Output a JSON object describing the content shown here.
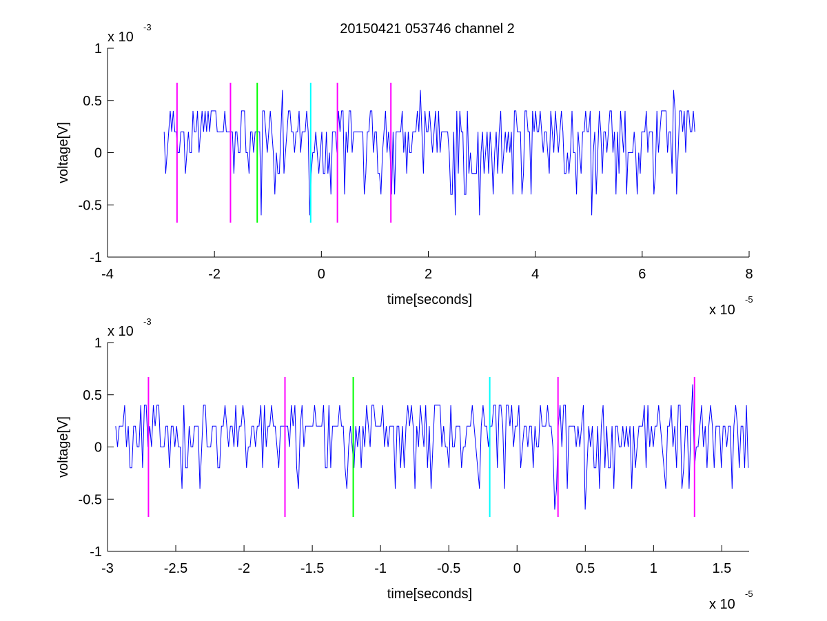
{
  "figure": {
    "title": "20150421 053746 channel 2"
  },
  "chart_data": [
    {
      "type": "line",
      "title": "20150421 053746 channel 2",
      "xlabel": "time[seconds]",
      "ylabel": "voltage[V]",
      "x_exponent_label": "x 10",
      "x_exponent": "-5",
      "y_exponent_label": "x 10",
      "y_exponent": "-3",
      "xlim": [
        -4e-05,
        8e-05
      ],
      "ylim": [
        -0.001,
        0.001
      ],
      "xticks": [
        -4e-05,
        -2e-05,
        0,
        2e-05,
        4e-05,
        6e-05,
        8e-05
      ],
      "xtick_labels": [
        "-4",
        "-2",
        "0",
        "2",
        "4",
        "6",
        "8"
      ],
      "yticks": [
        -0.001,
        -0.0005,
        0,
        0.0005,
        0.001
      ],
      "ytick_labels": [
        "-1",
        "-0.5",
        "0",
        "0.5",
        "1"
      ],
      "signal": {
        "x_start": -2.94e-05,
        "x_end": 7e-05,
        "color": "#0000ff",
        "levels": [
          -0.0006,
          -0.0004,
          -0.0002,
          0,
          0.0002,
          0.0004,
          0.0006
        ],
        "baseline": 0.0002
      },
      "markers": [
        {
          "x": -2.7e-05,
          "color": "#ff00ff",
          "ymin": -0.00067,
          "ymax": 0.00067
        },
        {
          "x": -1.7e-05,
          "color": "#ff00ff",
          "ymin": -0.00067,
          "ymax": 0.00067
        },
        {
          "x": -1.2e-05,
          "color": "#00ff00",
          "ymin": -0.00067,
          "ymax": 0.00067
        },
        {
          "x": -2e-06,
          "color": "#00ffff",
          "ymin": -0.00067,
          "ymax": 0.00067
        },
        {
          "x": 3e-06,
          "color": "#ff00ff",
          "ymin": -0.00067,
          "ymax": 0.00067
        },
        {
          "x": 1.3e-05,
          "color": "#ff00ff",
          "ymin": -0.00067,
          "ymax": 0.00067
        }
      ]
    },
    {
      "type": "line",
      "title": "",
      "xlabel": "time[seconds]",
      "ylabel": "voltage[V]",
      "x_exponent_label": "x 10",
      "x_exponent": "-5",
      "y_exponent_label": "x 10",
      "y_exponent": "-3",
      "xlim": [
        -3e-05,
        1.7e-05
      ],
      "ylim": [
        -0.001,
        0.001
      ],
      "xticks": [
        -3e-05,
        -2.5e-05,
        -2e-05,
        -1.5e-05,
        -1e-05,
        -5e-06,
        0,
        5e-06,
        1e-05,
        1.5e-05
      ],
      "xtick_labels": [
        "-3",
        "-2.5",
        "-2",
        "-1.5",
        "-1",
        "-0.5",
        "0",
        "0.5",
        "1",
        "1.5"
      ],
      "yticks": [
        -0.001,
        -0.0005,
        0,
        0.0005,
        0.001
      ],
      "ytick_labels": [
        "-1",
        "-0.5",
        "0",
        "0.5",
        "1"
      ],
      "signal": {
        "x_start": -2.94e-05,
        "x_end": 1.7e-05,
        "color": "#0000ff",
        "levels": [
          -0.0006,
          -0.0004,
          -0.0002,
          0,
          0.0002,
          0.0004,
          0.0006
        ],
        "baseline": 0.0002
      },
      "markers": [
        {
          "x": -2.7e-05,
          "color": "#ff00ff",
          "ymin": -0.00067,
          "ymax": 0.00067
        },
        {
          "x": -1.7e-05,
          "color": "#ff00ff",
          "ymin": -0.00067,
          "ymax": 0.00067
        },
        {
          "x": -1.2e-05,
          "color": "#00ff00",
          "ymin": -0.00067,
          "ymax": 0.00067
        },
        {
          "x": -2e-06,
          "color": "#00ffff",
          "ymin": -0.00067,
          "ymax": 0.00067
        },
        {
          "x": 3e-06,
          "color": "#ff00ff",
          "ymin": -0.00067,
          "ymax": 0.00067
        },
        {
          "x": 1.3e-05,
          "color": "#ff00ff",
          "ymin": -0.00067,
          "ymax": 0.00067
        }
      ]
    }
  ]
}
